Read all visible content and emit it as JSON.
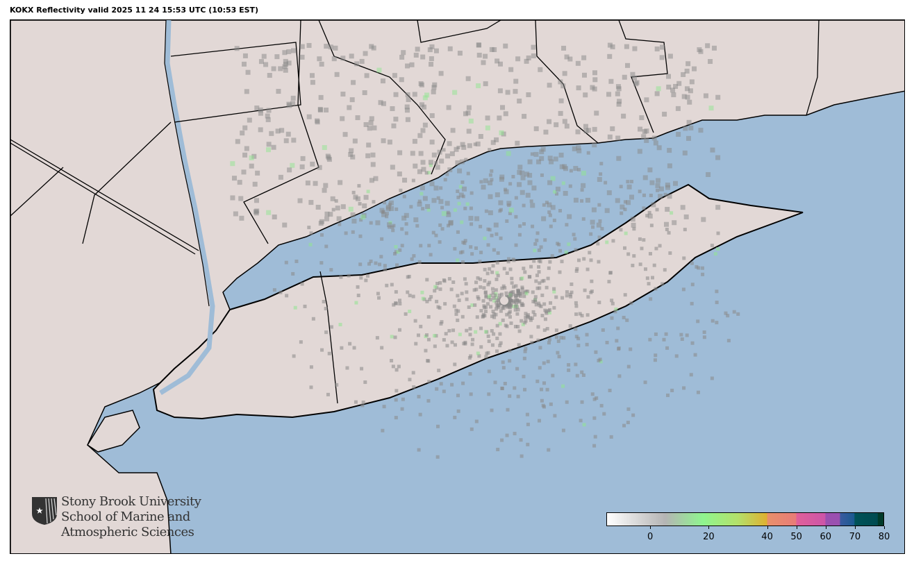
{
  "title": "KOKX Reflectivity valid 2025 11 24 15:53 UTC (10:53 EST)",
  "map": {
    "colors": {
      "water": "#9fbcd7",
      "land": "#e2d8d6",
      "borders": "#000000"
    }
  },
  "logo": {
    "lines": [
      "Stony Brook University",
      "School of Marine and",
      "Atmospheric Sciences"
    ]
  },
  "colorbar": {
    "range": [
      -15,
      80
    ],
    "ticks": [
      "0",
      "20",
      "40",
      "50",
      "60",
      "70",
      "80"
    ],
    "tick_values": [
      0,
      20,
      40,
      50,
      60,
      70,
      80
    ],
    "stops": [
      {
        "v": -15,
        "c": "#ffffff"
      },
      {
        "v": 5,
        "c": "#b4b4b4"
      },
      {
        "v": 18,
        "c": "#8ff58f"
      },
      {
        "v": 30,
        "c": "#b4e06a"
      },
      {
        "v": 40,
        "c": "#dfb030"
      },
      {
        "v": 40.1,
        "c": "#e8906a"
      },
      {
        "v": 50,
        "c": "#e87c78"
      },
      {
        "v": 50.1,
        "c": "#e0609a"
      },
      {
        "v": 60,
        "c": "#cc55a8"
      },
      {
        "v": 60.1,
        "c": "#9a50b0"
      },
      {
        "v": 65,
        "c": "#9a50b0"
      },
      {
        "v": 65.1,
        "c": "#3a5aa0"
      },
      {
        "v": 70,
        "c": "#1a5a90"
      },
      {
        "v": 70.1,
        "c": "#005258"
      },
      {
        "v": 78,
        "c": "#004a50"
      },
      {
        "v": 78.1,
        "c": "#003a2a"
      },
      {
        "v": 80,
        "c": "#003a2a"
      }
    ]
  }
}
